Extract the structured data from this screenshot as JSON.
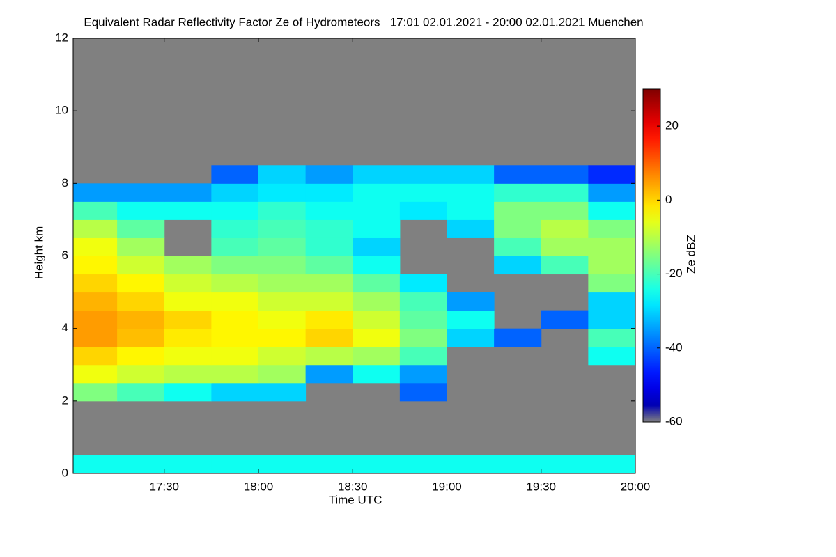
{
  "chart_data": {
    "type": "heatmap",
    "title": "Equivalent Radar Reflectivity Factor Ze of Hydrometeors   17:01 02.01.2021 - 20:00 02.01.2021 Muenchen",
    "x_label": "Time UTC",
    "y_label": "Height km",
    "colorbar_label": "Ze dBZ",
    "xlim": [
      17.01667,
      20.0
    ],
    "xticks": [
      {
        "value": 17.5,
        "label": "17:30"
      },
      {
        "value": 18.0,
        "label": "18:00"
      },
      {
        "value": 18.5,
        "label": "18:30"
      },
      {
        "value": 19.0,
        "label": "19:00"
      },
      {
        "value": 19.5,
        "label": "19:30"
      },
      {
        "value": 20.0,
        "label": "20:00"
      }
    ],
    "ylim": [
      0,
      12
    ],
    "yticks": [
      0,
      2,
      4,
      6,
      8,
      10,
      12
    ],
    "zlim": [
      -60,
      30
    ],
    "zticks": [
      -60,
      -40,
      -20,
      0,
      20
    ],
    "colormap": "jet",
    "no_data_color": "#808080",
    "x_bins": [
      17.01667,
      17.25,
      17.5,
      17.75,
      18.0,
      18.25,
      18.5,
      18.75,
      19.0,
      19.25,
      19.5,
      19.75,
      20.0
    ],
    "y_bins": [
      0,
      0.5,
      1,
      1.5,
      2,
      2.5,
      3,
      3.5,
      4,
      4.5,
      5,
      5.5,
      6,
      6.5,
      7,
      7.5,
      8,
      8.5,
      9,
      9.5,
      10,
      10.5,
      11,
      11.5,
      12
    ],
    "values": [
      [
        -25,
        -25,
        -25,
        -25,
        -25,
        -25,
        -25,
        -25,
        -25,
        -25,
        -25,
        -25
      ],
      [
        null,
        null,
        null,
        null,
        null,
        null,
        null,
        null,
        null,
        null,
        null,
        null
      ],
      [
        null,
        null,
        null,
        null,
        null,
        null,
        null,
        null,
        null,
        null,
        null,
        null
      ],
      [
        null,
        null,
        null,
        null,
        null,
        null,
        null,
        null,
        null,
        null,
        null,
        null
      ],
      [
        -15,
        -20,
        -25,
        -30,
        -30,
        null,
        null,
        -40,
        null,
        null,
        null,
        null
      ],
      [
        -5,
        -8,
        -10,
        -10,
        -12,
        -35,
        -25,
        -35,
        null,
        null,
        null,
        null
      ],
      [
        0,
        -3,
        -5,
        -5,
        -8,
        -10,
        -12,
        -20,
        null,
        null,
        null,
        -25
      ],
      [
        5,
        2,
        -2,
        -3,
        -3,
        0,
        -5,
        -15,
        -30,
        -40,
        null,
        -20
      ],
      [
        5,
        3,
        0,
        -3,
        -5,
        -2,
        -8,
        -18,
        -25,
        null,
        -40,
        -30
      ],
      [
        3,
        0,
        -5,
        -5,
        -8,
        -8,
        -12,
        -20,
        -35,
        null,
        null,
        -30
      ],
      [
        0,
        -3,
        -8,
        -10,
        -12,
        -12,
        -18,
        -28,
        null,
        null,
        null,
        -15
      ],
      [
        -3,
        -8,
        -12,
        -15,
        -15,
        -18,
        -25,
        null,
        null,
        -30,
        -20,
        -12
      ],
      [
        -5,
        -12,
        null,
        -20,
        -18,
        -22,
        -30,
        null,
        null,
        -20,
        -12,
        -12
      ],
      [
        -10,
        -18,
        null,
        -22,
        -20,
        -22,
        -25,
        null,
        -30,
        -15,
        -10,
        -15
      ],
      [
        -20,
        -25,
        -25,
        -25,
        -22,
        -25,
        -25,
        -28,
        -25,
        -15,
        -15,
        -25
      ],
      [
        -35,
        -35,
        -35,
        -30,
        -28,
        -28,
        -25,
        -25,
        -25,
        -22,
        -22,
        -35
      ],
      [
        null,
        null,
        null,
        -40,
        -30,
        -35,
        -30,
        -30,
        -30,
        -40,
        -40,
        -45
      ],
      [
        null,
        null,
        null,
        null,
        null,
        null,
        null,
        null,
        null,
        null,
        null,
        null
      ],
      [
        null,
        null,
        null,
        null,
        null,
        null,
        null,
        null,
        null,
        null,
        null,
        null
      ],
      [
        null,
        null,
        null,
        null,
        null,
        null,
        null,
        null,
        null,
        null,
        null,
        null
      ],
      [
        null,
        null,
        null,
        null,
        null,
        null,
        null,
        null,
        null,
        null,
        null,
        null
      ],
      [
        null,
        null,
        null,
        null,
        null,
        null,
        null,
        null,
        null,
        null,
        null,
        null
      ],
      [
        null,
        null,
        null,
        null,
        null,
        null,
        null,
        null,
        null,
        null,
        null,
        null
      ],
      [
        null,
        null,
        null,
        null,
        null,
        null,
        null,
        null,
        null,
        null,
        null,
        null
      ]
    ]
  }
}
